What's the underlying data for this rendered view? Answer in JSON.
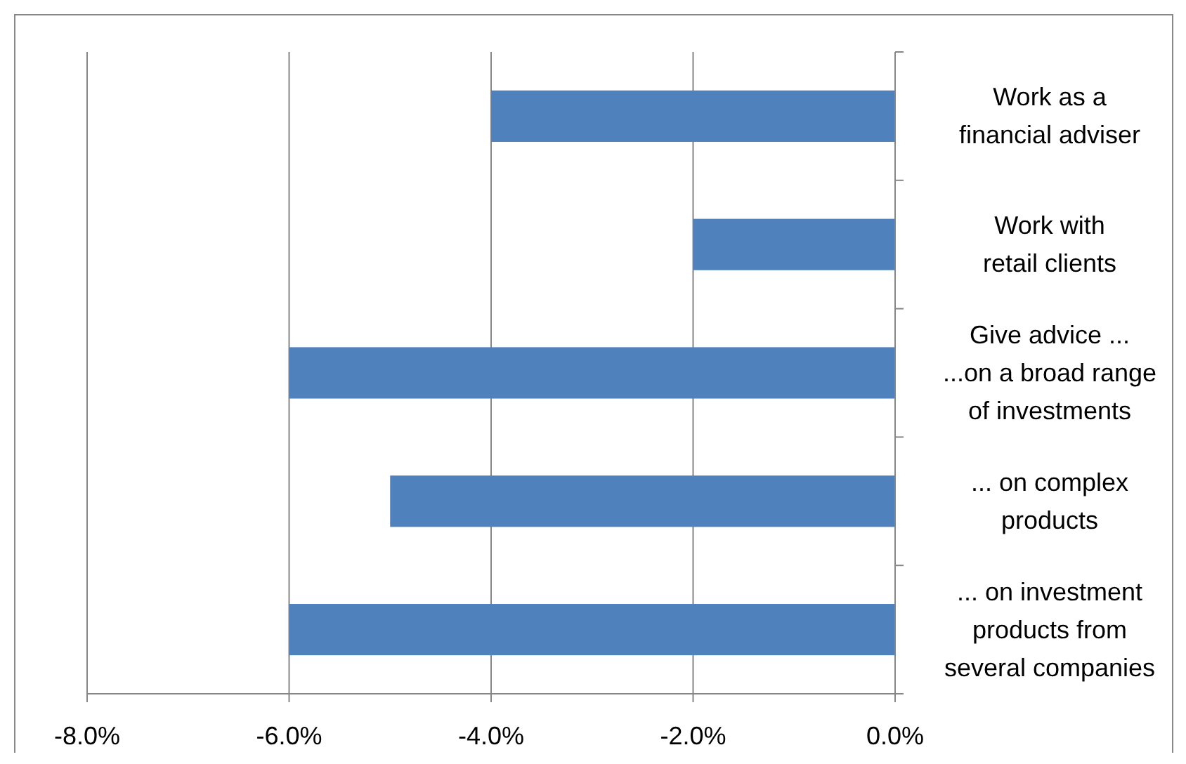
{
  "chart_data": {
    "type": "bar",
    "orientation": "horizontal",
    "categories": [
      "Work as a\nfinancial adviser",
      "Work with\nretail clients",
      "Give advice ...\n...on a broad range\nof investments",
      "... on complex\nproducts",
      "... on investment\nproducts from\nseveral companies"
    ],
    "values": [
      -4,
      -2,
      -6,
      -5,
      -6
    ],
    "color": "#4f81bd",
    "xlim": [
      -8,
      0
    ],
    "xticks": [
      {
        "value": -8,
        "label": "-8.0%"
      },
      {
        "value": -6,
        "label": "-6.0%"
      },
      {
        "value": -4,
        "label": "-4.0%"
      },
      {
        "value": -2,
        "label": "-2.0%"
      },
      {
        "value": 0,
        "label": "0.0%"
      }
    ],
    "grid": "x"
  }
}
